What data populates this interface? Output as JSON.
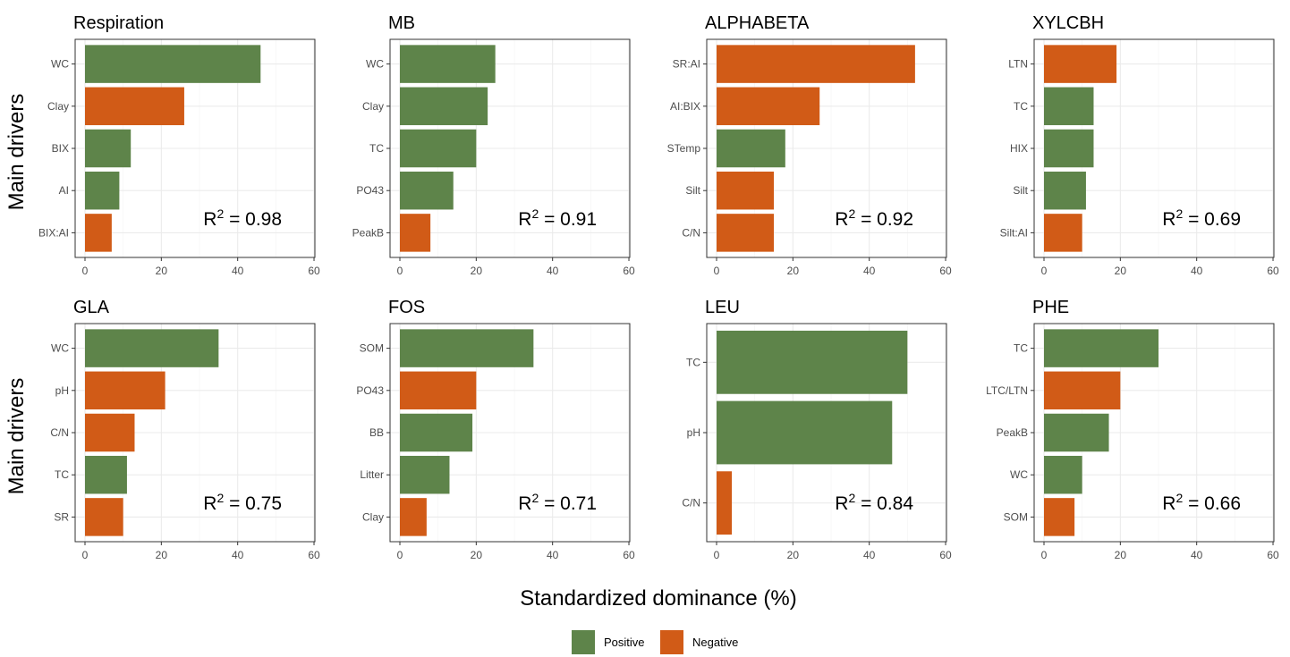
{
  "chart_data": {
    "type": "bar",
    "orientation": "horizontal",
    "xlabel": "Standardized dominance (%)",
    "ylabel": "Main drivers",
    "xlim": [
      0,
      60
    ],
    "xticks": [
      "0",
      "20",
      "40",
      "60"
    ],
    "grid": true,
    "legend": {
      "position": "bottom",
      "entries": [
        {
          "label": "Positive",
          "color": "#5e844a"
        },
        {
          "label": "Negative",
          "color": "#d15b17"
        }
      ]
    },
    "colors": {
      "Positive": "#5e844a",
      "Negative": "#d15b17"
    },
    "panels": [
      {
        "title": "Respiration",
        "r2": "0.98",
        "categories": [
          "WC",
          "Clay",
          "BIX",
          "AI",
          "BIX:AI"
        ],
        "values": [
          46,
          26,
          12,
          9,
          7
        ],
        "signs": [
          "Positive",
          "Negative",
          "Positive",
          "Positive",
          "Negative"
        ]
      },
      {
        "title": "MB",
        "r2": "0.91",
        "categories": [
          "WC",
          "Clay",
          "TC",
          "PO43",
          "PeakB"
        ],
        "values": [
          25,
          23,
          20,
          14,
          8
        ],
        "signs": [
          "Positive",
          "Positive",
          "Positive",
          "Positive",
          "Negative"
        ]
      },
      {
        "title": "ALPHABETA",
        "r2": "0.92",
        "categories": [
          "SR:AI",
          "AI:BIX",
          "STemp",
          "Silt",
          "C/N"
        ],
        "values": [
          52,
          27,
          18,
          15,
          15
        ],
        "signs": [
          "Negative",
          "Negative",
          "Positive",
          "Negative",
          "Negative"
        ]
      },
      {
        "title": "XYLCBH",
        "r2": "0.69",
        "categories": [
          "LTN",
          "TC",
          "HIX",
          "Silt",
          "Silt:AI"
        ],
        "values": [
          19,
          13,
          13,
          11,
          10
        ],
        "signs": [
          "Negative",
          "Positive",
          "Positive",
          "Positive",
          "Negative"
        ]
      },
      {
        "title": "GLA",
        "r2": "0.75",
        "categories": [
          "WC",
          "pH",
          "C/N",
          "TC",
          "SR"
        ],
        "values": [
          35,
          21,
          13,
          11,
          10
        ],
        "signs": [
          "Positive",
          "Negative",
          "Negative",
          "Positive",
          "Negative"
        ]
      },
      {
        "title": "FOS",
        "r2": "0.71",
        "categories": [
          "SOM",
          "PO43",
          "BB",
          "Litter",
          "Clay"
        ],
        "values": [
          35,
          20,
          19,
          13,
          7
        ],
        "signs": [
          "Positive",
          "Negative",
          "Positive",
          "Positive",
          "Negative"
        ]
      },
      {
        "title": "LEU",
        "r2": "0.84",
        "categories": [
          "TC",
          "pH",
          "C/N"
        ],
        "values": [
          50,
          46,
          4
        ],
        "signs": [
          "Positive",
          "Positive",
          "Negative"
        ]
      },
      {
        "title": "PHE",
        "r2": "0.66",
        "categories": [
          "TC",
          "LTC/LTN",
          "PeakB",
          "WC",
          "SOM"
        ],
        "values": [
          30,
          20,
          17,
          10,
          8
        ],
        "signs": [
          "Positive",
          "Negative",
          "Positive",
          "Positive",
          "Negative"
        ]
      }
    ]
  }
}
